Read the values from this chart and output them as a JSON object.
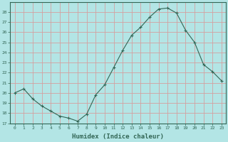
{
  "title": "",
  "xlabel": "Humidex (Indice chaleur)",
  "background_color": "#b3e5e5",
  "grid_color": "#d4a0a0",
  "line_color": "#336655",
  "marker_color": "#336655",
  "ylim": [
    17,
    29
  ],
  "xlim": [
    -0.5,
    23.5
  ],
  "yticks": [
    17,
    18,
    19,
    20,
    21,
    22,
    23,
    24,
    25,
    26,
    27,
    28
  ],
  "xticks": [
    0,
    1,
    2,
    3,
    4,
    5,
    6,
    7,
    8,
    9,
    10,
    11,
    12,
    13,
    14,
    15,
    16,
    17,
    18,
    19,
    20,
    21,
    22,
    23
  ],
  "x": [
    0,
    1,
    2,
    3,
    4,
    5,
    6,
    7,
    8,
    9,
    10,
    11,
    12,
    13,
    14,
    15,
    16,
    17,
    18,
    19,
    20,
    21,
    22,
    23
  ],
  "y": [
    20.0,
    20.4,
    19.4,
    18.7,
    18.2,
    17.7,
    17.5,
    17.2,
    17.9,
    19.8,
    20.8,
    22.5,
    24.2,
    25.7,
    26.5,
    27.5,
    28.3,
    28.4,
    27.9,
    26.2,
    25.0,
    22.8,
    22.1,
    21.2
  ]
}
